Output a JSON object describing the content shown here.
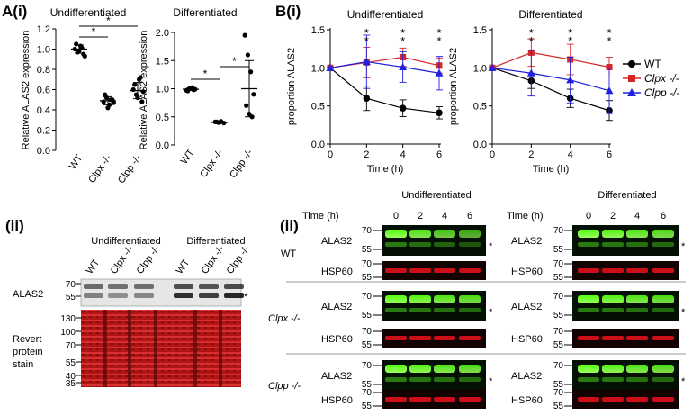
{
  "panel_labels": {
    "a": "A(i)",
    "b": "B(i)",
    "aii": "(ii)",
    "bii": "(ii)"
  },
  "colors": {
    "wt": "#000000",
    "clpx": "#d62728",
    "clpp": "#2020e0",
    "green_band": "#7cff3a",
    "red_band": "#e0101a"
  },
  "chart_data": [
    {
      "type": "scatter",
      "title": "Undifferentiated",
      "ylabel": "Relative ALAS2 expression",
      "categories": [
        "WT",
        "Clpx -/-",
        "Clpp -/-"
      ],
      "ylim": [
        0,
        1.2
      ],
      "yticks": [
        "0.0",
        "0.2",
        "0.4",
        "0.6",
        "0.8",
        "1.0",
        "1.2"
      ],
      "series": [
        {
          "values": [
            1.0,
            0.97,
            1.03,
            0.95,
            1.05,
            0.98,
            1.01,
            0.93
          ],
          "mean": 1.0,
          "sd": 0.04
        },
        {
          "values": [
            0.48,
            0.52,
            0.45,
            0.5,
            0.55,
            0.42,
            0.5,
            0.47
          ],
          "mean": 0.49,
          "sd": 0.04
        },
        {
          "values": [
            0.6,
            0.55,
            0.7,
            0.48,
            0.65,
            0.52,
            0.72,
            0.58
          ],
          "mean": 0.59,
          "sd": 0.08
        }
      ],
      "significance": [
        "*",
        "*"
      ]
    },
    {
      "type": "scatter",
      "title": "Differentiated",
      "ylabel": "Relative ALAS2 expression",
      "categories": [
        "WT",
        "Clpx -/-",
        "Clpp -/-"
      ],
      "ylim": [
        0,
        2.0
      ],
      "yticks": [
        "0.0",
        "0.5",
        "1.0",
        "1.5",
        "2.0"
      ],
      "series": [
        {
          "values": [
            0.97,
            1.0,
            1.02,
            0.99,
            0.96,
            1.01,
            0.98
          ],
          "mean": 0.99,
          "sd": 0.02
        },
        {
          "values": [
            0.41,
            0.4,
            0.42,
            0.39,
            0.41,
            0.4
          ],
          "mean": 0.4,
          "sd": 0.01
        },
        {
          "values": [
            1.95,
            1.6,
            1.3,
            0.9,
            0.7,
            0.55,
            0.5
          ],
          "mean": 1.0,
          "sd": 0.5
        }
      ],
      "significance": [
        "*",
        "*"
      ]
    },
    {
      "type": "line",
      "title": "Undifferentiated",
      "xlabel": "Time (h)",
      "ylabel": "proportion ALAS2",
      "x": [
        0,
        2,
        4,
        6
      ],
      "xticks": [
        "0",
        "2",
        "4",
        "6"
      ],
      "ylim": [
        0,
        1.5
      ],
      "yticks": [
        "0.0",
        "0.5",
        "1.0",
        "1.5"
      ],
      "series": [
        {
          "name": "WT",
          "values": [
            1.0,
            0.6,
            0.47,
            0.41
          ],
          "err": [
            0,
            0.16,
            0.11,
            0.08
          ]
        },
        {
          "name": "Clpx -/-",
          "values": [
            1.0,
            1.07,
            1.14,
            1.03
          ],
          "err": [
            0,
            0.2,
            0.12,
            0.1
          ]
        },
        {
          "name": "Clpp -/-",
          "values": [
            1.0,
            1.08,
            1.01,
            0.93
          ],
          "err": [
            0,
            0.35,
            0.2,
            0.22
          ]
        }
      ],
      "stars": [
        "*",
        "*",
        "*"
      ]
    },
    {
      "type": "line",
      "title": "Differentiated",
      "xlabel": "Time (h)",
      "ylabel": "proportion ALAS2",
      "x": [
        0,
        2,
        4,
        6
      ],
      "xticks": [
        "0",
        "2",
        "4",
        "6"
      ],
      "ylim": [
        0,
        1.5
      ],
      "yticks": [
        "0.0",
        "0.5",
        "1.0",
        "1.5"
      ],
      "series": [
        {
          "name": "WT",
          "values": [
            1.0,
            0.83,
            0.6,
            0.44
          ],
          "err": [
            0,
            0.1,
            0.12,
            0.13
          ]
        },
        {
          "name": "Clpx -/-",
          "values": [
            1.0,
            1.2,
            1.11,
            1.01
          ],
          "err": [
            0,
            0.18,
            0.2,
            0.13
          ]
        },
        {
          "name": "Clpp -/-",
          "values": [
            1.0,
            0.93,
            0.84,
            0.7
          ],
          "err": [
            0,
            0.3,
            0.3,
            0.3
          ]
        }
      ],
      "stars": [
        "*",
        "*",
        "*"
      ]
    }
  ],
  "legend": [
    "WT",
    "Clpx -/-",
    "Clpp -/-"
  ],
  "blot_ii": {
    "group_left": "Undifferentiated",
    "group_right": "Differentiated",
    "lanes": [
      "WT",
      "Clpx -/-",
      "Clpp -/-",
      "WT",
      "Clpx -/-",
      "Clpp -/-"
    ],
    "row1_label": "ALAS2",
    "row2_label": [
      "Revert",
      "protein",
      "stain"
    ],
    "markers_top": [
      "70",
      "55"
    ],
    "markers_bottom": [
      "130",
      "100",
      "70",
      "55",
      "40",
      "35"
    ],
    "star": "*"
  },
  "blot_bii": {
    "title_left": "Undifferentiated",
    "title_right": "Differentiated",
    "time_label": "Time (h)",
    "times": [
      "0",
      "2",
      "4",
      "6"
    ],
    "genotypes": [
      "WT",
      "Clpx -/-",
      "Clpp -/-"
    ],
    "alas2": "ALAS2",
    "hsp60": "HSP60",
    "m70": "70",
    "m55": "55",
    "star": "*"
  }
}
